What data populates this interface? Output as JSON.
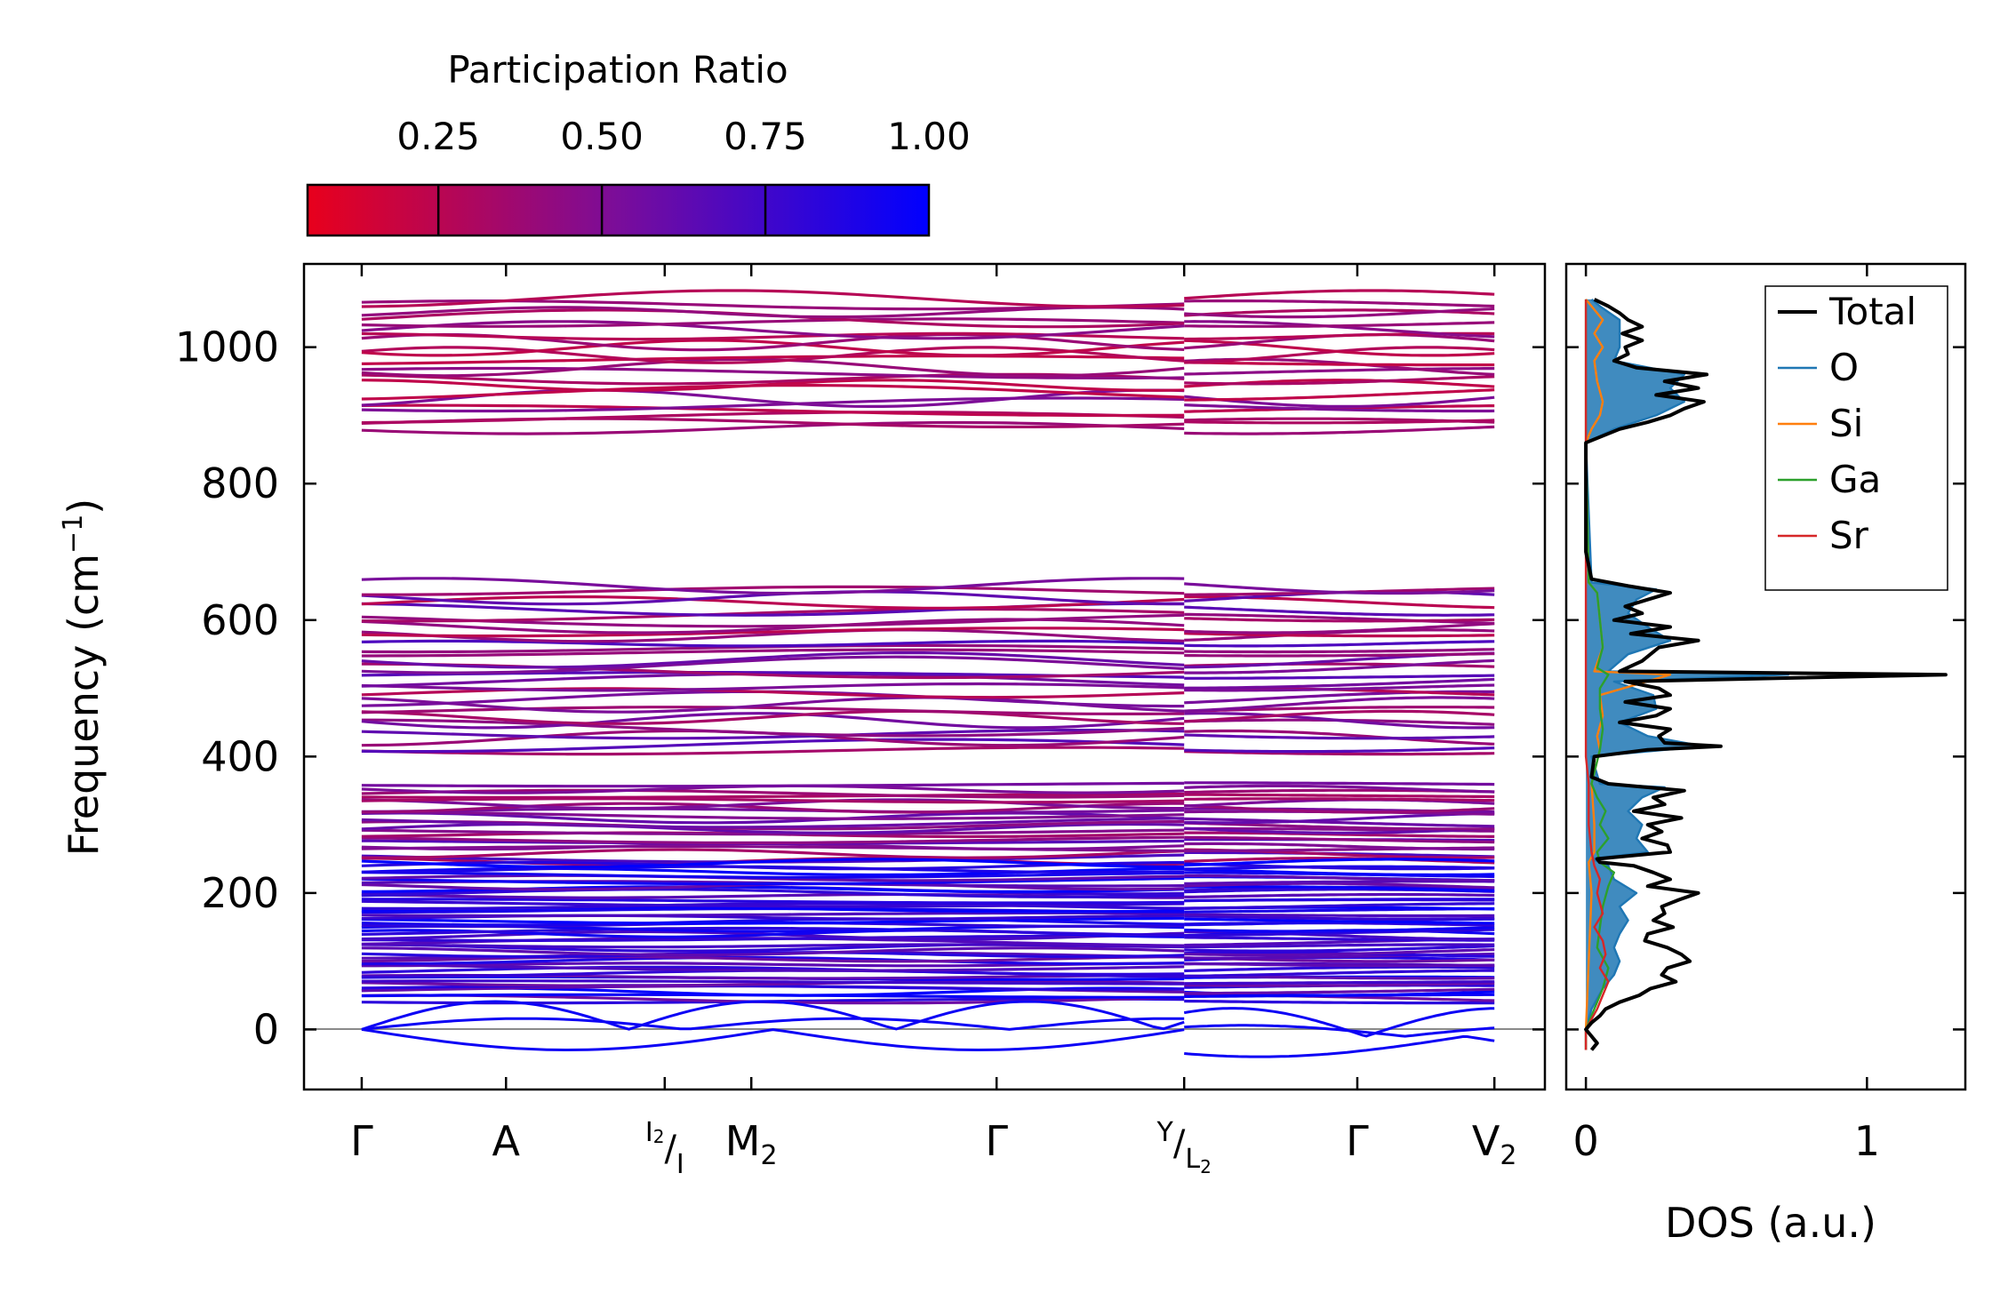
{
  "chart_data": [
    {
      "type": "line",
      "subtype": "phonon-band-structure",
      "title": "",
      "xlabel": "",
      "ylabel": "Frequency (cm⁻¹)",
      "ylim": [
        -88,
        1122
      ],
      "yticks": [
        0,
        200,
        400,
        600,
        800,
        1000
      ],
      "ytick_labels": [
        "0",
        "200",
        "400",
        "600",
        "800",
        "1000"
      ],
      "path_labels": [
        {
          "id": "gamma1",
          "label": "Γ"
        },
        {
          "id": "A",
          "label": "A"
        },
        {
          "id": "I2I",
          "sup": "I",
          "sub_sup": "2",
          "slash": "/",
          "base": "I"
        },
        {
          "id": "M2",
          "label": "M",
          "sub": "2"
        },
        {
          "id": "gamma2",
          "label": "Γ"
        },
        {
          "id": "YL2",
          "sup": "Y",
          "slash": "/",
          "base": "L",
          "sub": "2"
        },
        {
          "id": "gamma3",
          "label": "Γ"
        },
        {
          "id": "V2",
          "label": "V",
          "sub": "2"
        }
      ],
      "path_positions": [
        0,
        1,
        2.1,
        2.7,
        4.4,
        5.7,
        6.9,
        7.85
      ],
      "segment_break": 5.7,
      "x_range": [
        -0.4,
        8.2
      ],
      "zero_line": 0,
      "band_groups": [
        {
          "min": 875,
          "max": 1075,
          "count": 22
        },
        {
          "min": 405,
          "max": 655,
          "count": 30
        },
        {
          "min": 245,
          "max": 360,
          "count": 22
        },
        {
          "min": 40,
          "max": 245,
          "count": 50
        }
      ],
      "acoustic_dip": -30,
      "colorbar": {
        "label": "Participation Ratio",
        "range": [
          0.05,
          1.0
        ],
        "ticks": [
          0.25,
          0.5,
          0.75,
          1.0
        ],
        "tick_labels": [
          "0.25",
          "0.50",
          "0.75",
          "1.00"
        ],
        "color_low": "#e8001c",
        "color_high": "#0000ff"
      }
    },
    {
      "type": "line",
      "subtype": "density-of-states",
      "xlabel": "DOS (a.u.)",
      "ylabel": "",
      "xlim": [
        -0.07,
        1.35
      ],
      "xticks": [
        0,
        1
      ],
      "xtick_labels": [
        "0",
        "1"
      ],
      "series": [
        {
          "name": "Total",
          "color": "#000000",
          "points": [
            [
              -30,
              0.02
            ],
            [
              -20,
              0.04
            ],
            [
              -10,
              0.02
            ],
            [
              0,
              0.0
            ],
            [
              10,
              0.02
            ],
            [
              20,
              0.05
            ],
            [
              30,
              0.07
            ],
            [
              40,
              0.12
            ],
            [
              50,
              0.19
            ],
            [
              60,
              0.23
            ],
            [
              70,
              0.32
            ],
            [
              80,
              0.27
            ],
            [
              90,
              0.29
            ],
            [
              100,
              0.37
            ],
            [
              110,
              0.34
            ],
            [
              120,
              0.29
            ],
            [
              130,
              0.21
            ],
            [
              140,
              0.22
            ],
            [
              150,
              0.31
            ],
            [
              160,
              0.24
            ],
            [
              170,
              0.28
            ],
            [
              180,
              0.27
            ],
            [
              190,
              0.33
            ],
            [
              200,
              0.4
            ],
            [
              210,
              0.22
            ],
            [
              220,
              0.3
            ],
            [
              230,
              0.24
            ],
            [
              240,
              0.17
            ],
            [
              245,
              0.05
            ],
            [
              250,
              0.04
            ],
            [
              260,
              0.3
            ],
            [
              270,
              0.29
            ],
            [
              280,
              0.2
            ],
            [
              290,
              0.27
            ],
            [
              300,
              0.22
            ],
            [
              310,
              0.34
            ],
            [
              320,
              0.17
            ],
            [
              330,
              0.28
            ],
            [
              340,
              0.24
            ],
            [
              350,
              0.35
            ],
            [
              360,
              0.08
            ],
            [
              370,
              0.02
            ],
            [
              400,
              0.03
            ],
            [
              410,
              0.22
            ],
            [
              415,
              0.48
            ],
            [
              420,
              0.28
            ],
            [
              430,
              0.26
            ],
            [
              440,
              0.3
            ],
            [
              450,
              0.12
            ],
            [
              460,
              0.25
            ],
            [
              470,
              0.3
            ],
            [
              480,
              0.14
            ],
            [
              490,
              0.3
            ],
            [
              500,
              0.26
            ],
            [
              510,
              0.14
            ],
            [
              520,
              1.28
            ],
            [
              525,
              0.12
            ],
            [
              540,
              0.2
            ],
            [
              560,
              0.26
            ],
            [
              570,
              0.4
            ],
            [
              580,
              0.16
            ],
            [
              590,
              0.3
            ],
            [
              600,
              0.1
            ],
            [
              610,
              0.2
            ],
            [
              620,
              0.14
            ],
            [
              630,
              0.22
            ],
            [
              640,
              0.3
            ],
            [
              650,
              0.15
            ],
            [
              660,
              0.02
            ],
            [
              700,
              0.0
            ],
            [
              860,
              0.0
            ],
            [
              880,
              0.12
            ],
            [
              890,
              0.22
            ],
            [
              900,
              0.3
            ],
            [
              910,
              0.35
            ],
            [
              920,
              0.42
            ],
            [
              930,
              0.25
            ],
            [
              940,
              0.4
            ],
            [
              950,
              0.28
            ],
            [
              960,
              0.43
            ],
            [
              970,
              0.18
            ],
            [
              980,
              0.1
            ],
            [
              990,
              0.15
            ],
            [
              1000,
              0.14
            ],
            [
              1010,
              0.2
            ],
            [
              1020,
              0.13
            ],
            [
              1030,
              0.2
            ],
            [
              1040,
              0.15
            ],
            [
              1050,
              0.12
            ],
            [
              1060,
              0.08
            ],
            [
              1070,
              0.03
            ]
          ]
        },
        {
          "name": "O",
          "color": "#1f77b4",
          "points": [
            [
              -30,
              0.0
            ],
            [
              0,
              0.0
            ],
            [
              30,
              0.02
            ],
            [
              60,
              0.06
            ],
            [
              80,
              0.1
            ],
            [
              100,
              0.12
            ],
            [
              120,
              0.1
            ],
            [
              140,
              0.12
            ],
            [
              160,
              0.15
            ],
            [
              180,
              0.12
            ],
            [
              200,
              0.18
            ],
            [
              220,
              0.1
            ],
            [
              240,
              0.08
            ],
            [
              250,
              0.02
            ],
            [
              260,
              0.22
            ],
            [
              280,
              0.18
            ],
            [
              300,
              0.2
            ],
            [
              320,
              0.15
            ],
            [
              340,
              0.2
            ],
            [
              355,
              0.28
            ],
            [
              360,
              0.05
            ],
            [
              400,
              0.02
            ],
            [
              415,
              0.42
            ],
            [
              430,
              0.22
            ],
            [
              450,
              0.12
            ],
            [
              470,
              0.25
            ],
            [
              490,
              0.24
            ],
            [
              510,
              0.1
            ],
            [
              520,
              0.72
            ],
            [
              525,
              0.08
            ],
            [
              550,
              0.15
            ],
            [
              570,
              0.3
            ],
            [
              590,
              0.22
            ],
            [
              610,
              0.15
            ],
            [
              630,
              0.18
            ],
            [
              645,
              0.25
            ],
            [
              655,
              0.02
            ],
            [
              860,
              0.0
            ],
            [
              880,
              0.1
            ],
            [
              900,
              0.25
            ],
            [
              920,
              0.35
            ],
            [
              940,
              0.3
            ],
            [
              960,
              0.35
            ],
            [
              980,
              0.1
            ],
            [
              1000,
              0.12
            ],
            [
              1020,
              0.12
            ],
            [
              1040,
              0.12
            ],
            [
              1060,
              0.05
            ],
            [
              1070,
              0.02
            ]
          ]
        },
        {
          "name": "Si",
          "color": "#ff7f0e",
          "points": [
            [
              -30,
              0.0
            ],
            [
              0,
              0.0
            ],
            [
              100,
              0.01
            ],
            [
              200,
              0.02
            ],
            [
              245,
              0.01
            ],
            [
              260,
              0.03
            ],
            [
              300,
              0.03
            ],
            [
              360,
              0.02
            ],
            [
              410,
              0.05
            ],
            [
              430,
              0.04
            ],
            [
              460,
              0.06
            ],
            [
              490,
              0.05
            ],
            [
              520,
              0.3
            ],
            [
              525,
              0.03
            ],
            [
              560,
              0.06
            ],
            [
              600,
              0.05
            ],
            [
              640,
              0.04
            ],
            [
              655,
              0.01
            ],
            [
              860,
              0.0
            ],
            [
              880,
              0.02
            ],
            [
              900,
              0.05
            ],
            [
              920,
              0.06
            ],
            [
              950,
              0.04
            ],
            [
              980,
              0.03
            ],
            [
              1000,
              0.06
            ],
            [
              1020,
              0.03
            ],
            [
              1040,
              0.06
            ],
            [
              1060,
              0.02
            ],
            [
              1070,
              0.0
            ]
          ]
        },
        {
          "name": "Ga",
          "color": "#2ca02c",
          "points": [
            [
              -30,
              0.0
            ],
            [
              0,
              0.0
            ],
            [
              30,
              0.03
            ],
            [
              60,
              0.06
            ],
            [
              90,
              0.08
            ],
            [
              120,
              0.04
            ],
            [
              150,
              0.05
            ],
            [
              180,
              0.06
            ],
            [
              210,
              0.08
            ],
            [
              230,
              0.1
            ],
            [
              245,
              0.05
            ],
            [
              260,
              0.04
            ],
            [
              280,
              0.08
            ],
            [
              300,
              0.05
            ],
            [
              320,
              0.07
            ],
            [
              340,
              0.04
            ],
            [
              360,
              0.02
            ],
            [
              410,
              0.05
            ],
            [
              440,
              0.06
            ],
            [
              470,
              0.05
            ],
            [
              500,
              0.05
            ],
            [
              520,
              0.08
            ],
            [
              530,
              0.04
            ],
            [
              560,
              0.06
            ],
            [
              600,
              0.05
            ],
            [
              640,
              0.04
            ],
            [
              655,
              0.01
            ],
            [
              860,
              0.0
            ],
            [
              1070,
              0.0
            ]
          ]
        },
        {
          "name": "Sr",
          "color": "#d62728",
          "points": [
            [
              -30,
              0.0
            ],
            [
              0,
              0.0
            ],
            [
              30,
              0.04
            ],
            [
              50,
              0.06
            ],
            [
              70,
              0.08
            ],
            [
              90,
              0.05
            ],
            [
              110,
              0.07
            ],
            [
              130,
              0.06
            ],
            [
              150,
              0.03
            ],
            [
              170,
              0.06
            ],
            [
              200,
              0.04
            ],
            [
              220,
              0.05
            ],
            [
              240,
              0.03
            ],
            [
              260,
              0.02
            ],
            [
              300,
              0.01
            ],
            [
              360,
              0.01
            ],
            [
              400,
              0.0
            ],
            [
              1070,
              0.0
            ]
          ]
        }
      ],
      "legend_position": "top-right"
    }
  ]
}
